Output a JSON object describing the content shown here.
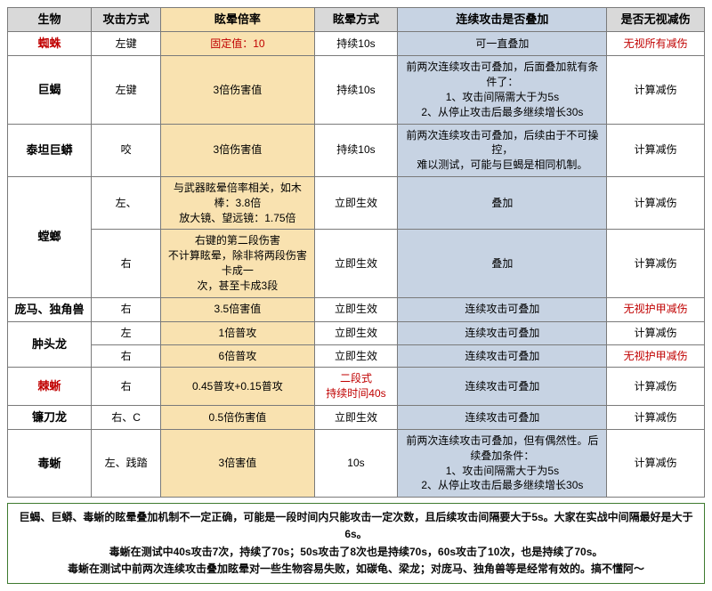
{
  "colors": {
    "header_bg": "#d9d9d9",
    "col_dizzy_bg": "#f9e2b0",
    "col_stack_bg": "#c7d3e3",
    "border": "#7a7a7a",
    "red": "#c00000",
    "black": "#000000",
    "note_border": "#3e7a2f"
  },
  "col_widths": [
    "12%",
    "10%",
    "22%",
    "12%",
    "30%",
    "14%"
  ],
  "headers": [
    "生物",
    "攻击方式",
    "眩晕倍率",
    "眩晕方式",
    "连续攻击是否叠加",
    "是否无视减伤"
  ],
  "rows": [
    {
      "creature": "蜘蛛",
      "creature_color": "#c00000",
      "atk": "左键",
      "dizzy": "固定值：10",
      "dizzy_color": "#c00000",
      "mode": "持续10s",
      "stack": "可一直叠加",
      "ignore": "无视所有减伤",
      "ignore_color": "#c00000"
    },
    {
      "creature": "巨蝎",
      "atk": "左键",
      "dizzy": "3倍伤害值",
      "mode": "持续10s",
      "stack": "前两次连续攻击可叠加，后面叠加就有条件了：\n1、攻击间隔需大于为5s\n2、从停止攻击后最多继续增长30s",
      "ignore": "计算减伤"
    },
    {
      "creature": "泰坦巨蟒",
      "atk": "咬",
      "dizzy": "3倍伤害值",
      "mode": "持续10s",
      "stack": "前两次连续攻击可叠加，后续由于不可操控，\n难以测试，可能与巨蝎是相同机制。",
      "ignore": "计算减伤"
    },
    {
      "creature": "螳螂",
      "rowspan": 2,
      "atk": "左、",
      "dizzy": "与武器眩晕倍率相关，如木棒：3.8倍\n放大镜、望远镜：1.75倍",
      "mode": "立即生效",
      "stack": "叠加",
      "ignore": "计算减伤"
    },
    {
      "sub": true,
      "atk": "右",
      "dizzy": "右键的第二段伤害\n不计算眩晕，除非将两段伤害卡成一\n次，甚至卡成3段",
      "mode": "立即生效",
      "stack": "叠加",
      "ignore": "计算减伤"
    },
    {
      "creature": "庞马、独角兽",
      "atk": "右",
      "dizzy": "3.5倍害值",
      "mode": "立即生效",
      "stack": "连续攻击可叠加",
      "ignore": "无视护甲减伤",
      "ignore_color": "#c00000"
    },
    {
      "creature": "肿头龙",
      "rowspan": 2,
      "atk": "左",
      "dizzy": "1倍普攻",
      "mode": "立即生效",
      "stack": "连续攻击可叠加",
      "ignore": "计算减伤"
    },
    {
      "sub": true,
      "atk": "右",
      "dizzy": "6倍普攻",
      "mode": "立即生效",
      "stack": "连续攻击可叠加",
      "ignore": "无视护甲减伤",
      "ignore_color": "#c00000"
    },
    {
      "creature": "棘蜥",
      "creature_color": "#c00000",
      "atk": "右",
      "dizzy": "0.45普攻+0.15普攻",
      "mode": "二段式\n持续时间40s",
      "mode_color": "#c00000",
      "stack": "连续攻击可叠加",
      "ignore": "计算减伤"
    },
    {
      "creature": "镰刀龙",
      "atk": "右、C",
      "dizzy": "0.5倍伤害值",
      "mode": "立即生效",
      "stack": "连续攻击可叠加",
      "ignore": "计算减伤"
    },
    {
      "creature": "毒蜥",
      "atk": "左、践踏",
      "dizzy": "3倍害值",
      "mode": "10s",
      "stack": "前两次连续攻击可叠加，但有偶然性。后续叠加条件：\n1、攻击间隔需大于为5s\n2、从停止攻击后最多继续增长30s",
      "ignore": "计算减伤"
    }
  ],
  "notes": [
    "巨蝎、巨蟒、毒蜥的眩晕叠加机制不一定正确，可能是一段时间内只能攻击一定次数，且后续攻击间隔要大于5s。大家在实战中间隔最好是大于6s。",
    "毒蜥在测试中40s攻击7次，持续了70s；50s攻击了8次也是持续70s，60s攻击了10次，也是持续了70s。",
    "毒蜥在测试中前两次连续攻击叠加眩晕对一些生物容易失败，如碳龟、梁龙；对庞马、独角兽等是经常有效的。搞不懂阿～"
  ]
}
